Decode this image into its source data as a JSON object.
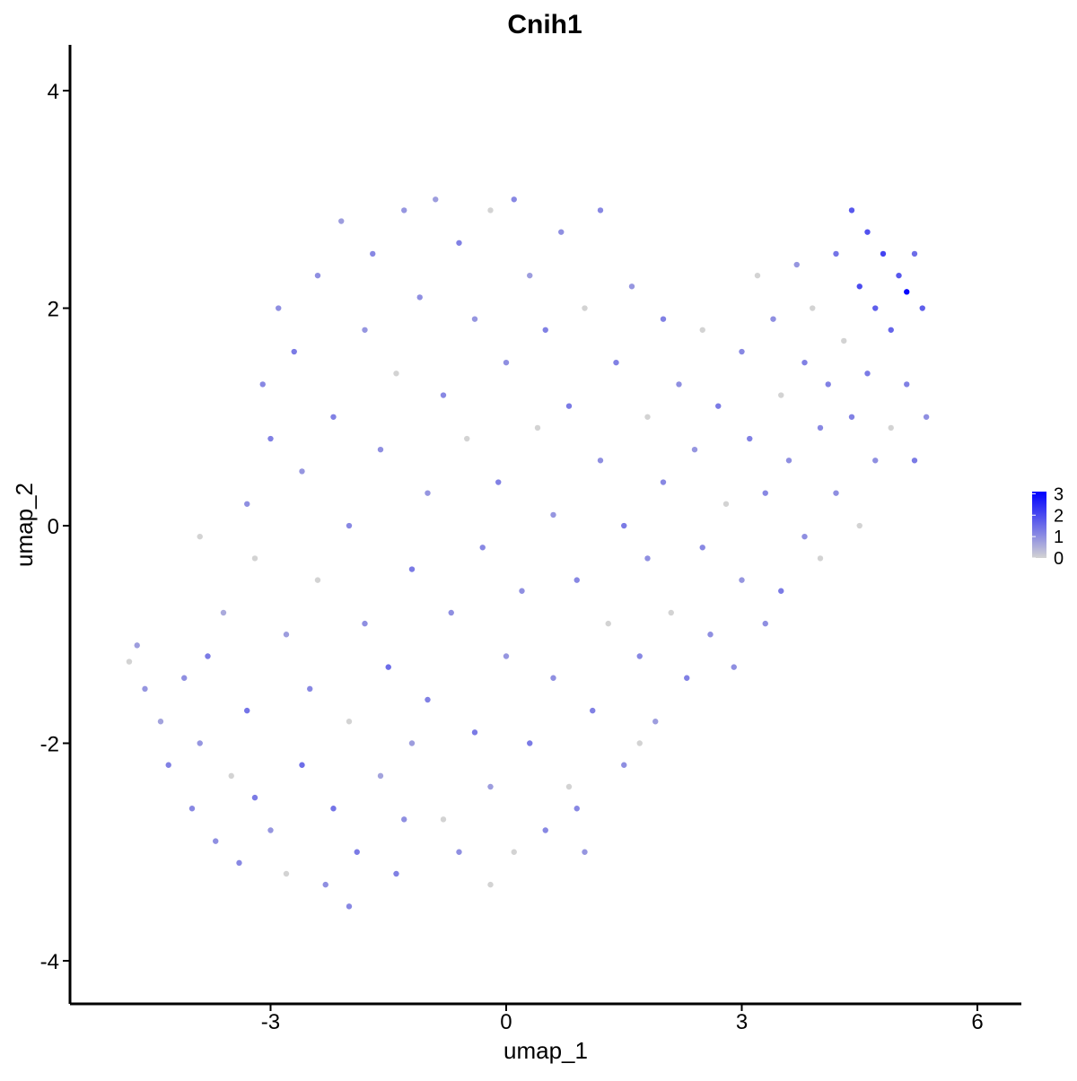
{
  "chart_data": {
    "type": "scatter",
    "title": "Cnih1",
    "x_label": "umap_1",
    "y_label": "umap_2",
    "xlim": [
      -5.554,
      6.56
    ],
    "ylim": [
      -4.396,
      4.421
    ],
    "xticks": [
      -3,
      0,
      3,
      6
    ],
    "yticks": [
      -4,
      -2,
      0,
      2,
      4
    ],
    "color_low": "#d3d3d3",
    "color_high": "#0000ff",
    "color_lim": [
      0,
      3.1
    ],
    "color_ticks": [
      0,
      1,
      2,
      3
    ],
    "x": [
      -4.8,
      -4.7,
      -4.6,
      -4.4,
      -4.3,
      -4.1,
      -4.0,
      -3.9,
      -3.8,
      -3.7,
      -3.6,
      -3.5,
      -3.4,
      -3.3,
      -3.3,
      -3.2,
      -3.1,
      -3.0,
      -3.0,
      -2.9,
      -2.8,
      -2.8,
      -2.7,
      -2.6,
      -2.6,
      -2.5,
      -2.4,
      -2.4,
      -2.3,
      -2.2,
      -2.2,
      -2.1,
      -2.0,
      -2.0,
      -1.9,
      -1.8,
      -1.8,
      -1.7,
      -1.6,
      -1.6,
      -1.5,
      -1.4,
      -1.4,
      -1.3,
      -1.2,
      -1.2,
      -1.1,
      -1.0,
      -1.0,
      -0.9,
      -0.8,
      -0.8,
      -0.7,
      -0.6,
      -0.6,
      -0.5,
      -0.4,
      -0.4,
      -0.3,
      -0.2,
      -0.2,
      -0.1,
      0.0,
      0.0,
      0.1,
      0.1,
      0.2,
      0.3,
      0.3,
      0.4,
      0.5,
      0.5,
      0.6,
      0.6,
      0.7,
      0.8,
      0.8,
      0.9,
      1.0,
      1.0,
      1.1,
      1.2,
      1.2,
      1.3,
      1.4,
      1.5,
      1.5,
      1.6,
      1.7,
      1.8,
      1.8,
      1.9,
      2.0,
      2.0,
      2.1,
      2.2,
      2.3,
      2.4,
      2.5,
      2.5,
      2.6,
      2.7,
      2.8,
      2.9,
      3.0,
      3.0,
      3.1,
      3.2,
      3.3,
      3.3,
      3.4,
      3.5,
      3.5,
      3.6,
      3.7,
      3.8,
      3.8,
      3.9,
      4.0,
      4.0,
      4.1,
      4.2,
      4.2,
      4.3,
      4.4,
      4.4,
      4.5,
      4.5,
      4.6,
      4.6,
      4.7,
      4.7,
      4.8,
      4.9,
      4.9,
      5.0,
      5.1,
      5.1,
      5.2,
      5.2,
      5.3,
      5.35,
      -2.0,
      -3.9,
      -3.2,
      -1.3,
      0.9,
      1.7,
      -0.2
    ],
    "y": [
      -1.25,
      -1.1,
      -1.5,
      -1.8,
      -2.2,
      -1.4,
      -2.6,
      -2.0,
      -1.2,
      -2.9,
      -0.8,
      -2.3,
      -3.1,
      -1.7,
      0.2,
      -0.3,
      1.3,
      -2.8,
      0.8,
      2.0,
      -1.0,
      -3.2,
      1.6,
      -2.2,
      0.5,
      -1.5,
      2.3,
      -0.5,
      -3.3,
      1.0,
      -2.6,
      2.8,
      -1.8,
      0.0,
      -3.0,
      1.8,
      -0.9,
      2.5,
      -2.3,
      0.7,
      -1.3,
      1.4,
      -3.2,
      2.9,
      -0.4,
      -2.0,
      2.1,
      0.3,
      -1.6,
      3.0,
      -2.7,
      1.2,
      -0.8,
      2.6,
      -3.0,
      0.8,
      -1.9,
      1.9,
      -0.2,
      2.9,
      -2.4,
      0.4,
      -1.2,
      1.5,
      3.0,
      -3.0,
      -0.6,
      2.3,
      -2.0,
      0.9,
      -2.8,
      1.8,
      -1.4,
      0.1,
      2.7,
      -2.4,
      1.1,
      -0.5,
      -3.0,
      2.0,
      -1.7,
      0.6,
      2.9,
      -0.9,
      1.5,
      -2.2,
      0.0,
      2.2,
      -1.2,
      1.0,
      -0.3,
      -1.8,
      1.9,
      0.4,
      -0.8,
      1.3,
      -1.4,
      0.7,
      1.8,
      -0.2,
      -1.0,
      1.1,
      0.2,
      -1.3,
      1.6,
      -0.5,
      0.8,
      2.3,
      -0.9,
      0.3,
      1.9,
      1.2,
      -0.6,
      0.6,
      2.4,
      1.5,
      -0.1,
      2.0,
      0.9,
      -0.3,
      1.3,
      2.5,
      0.3,
      1.7,
      2.9,
      1.0,
      2.2,
      0.0,
      2.7,
      1.4,
      2.0,
      0.6,
      2.5,
      1.8,
      0.9,
      2.3,
      2.15,
      1.3,
      2.5,
      0.6,
      2.0,
      1.0,
      -3.5,
      -0.1,
      -2.5,
      -2.7,
      -2.6,
      -2.0,
      -3.3
    ],
    "color_values": [
      0,
      0.8,
      0.9,
      0.7,
      1.2,
      1.0,
      1.1,
      0.9,
      1.3,
      1.0,
      0.6,
      0,
      1.1,
      1.4,
      1.0,
      0,
      1.1,
      0.9,
      1.2,
      1.0,
      0.8,
      0,
      1.3,
      1.5,
      0.9,
      1.1,
      1.0,
      0,
      1.0,
      1.2,
      1.4,
      0.8,
      0,
      1.1,
      1.3,
      0.9,
      1.0,
      1.1,
      0.7,
      1.0,
      1.5,
      0,
      1.2,
      0.9,
      1.3,
      0.8,
      1.0,
      0.9,
      1.2,
      0.8,
      0,
      1.1,
      1.0,
      1.2,
      1.0,
      0,
      1.3,
      0.9,
      1.1,
      0,
      0.8,
      1.2,
      0.9,
      1.0,
      1.1,
      0,
      1.0,
      0.8,
      1.3,
      0,
      1.1,
      1.2,
      1.0,
      0.9,
      1.0,
      0,
      1.3,
      1.1,
      0.9,
      0,
      1.2,
      1.0,
      1.1,
      0,
      1.2,
      1.0,
      1.3,
      0.9,
      1.1,
      0,
      1.0,
      0.8,
      1.2,
      1.1,
      0,
      1.0,
      1.2,
      0.9,
      0,
      1.1,
      1.0,
      1.3,
      0,
      1.0,
      1.1,
      0.9,
      1.2,
      0,
      1.0,
      1.1,
      1.0,
      0,
      1.3,
      1.0,
      0.9,
      1.2,
      1.0,
      0,
      1.1,
      0,
      1.2,
      1.4,
      1.0,
      0,
      1.8,
      1.2,
      2.0,
      0,
      1.9,
      1.3,
      1.7,
      1.0,
      2.1,
      1.6,
      0,
      1.8,
      3.0,
      1.2,
      1.5,
      1.3,
      1.7,
      1.0,
      1.1,
      0,
      1.3,
      1.0,
      1.1,
      0,
      0
    ]
  }
}
